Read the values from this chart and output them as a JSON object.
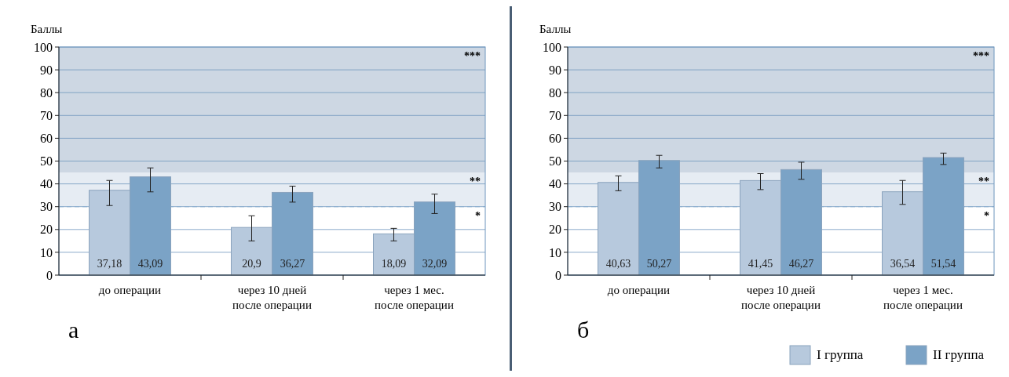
{
  "chart_data": [
    {
      "type": "bar",
      "ylabel": "Баллы",
      "categories": [
        "до операции",
        "через 10 дней\nпосле операции",
        "через 1 мес.\nпосле операции"
      ],
      "series": [
        {
          "color": "#b7c9dd",
          "values": [
            37.18,
            20.9,
            18.09
          ],
          "value_labels": [
            "37,18",
            "20,9",
            "18,09"
          ],
          "errors": [
            [
              30.5,
              41.5
            ],
            [
              15,
              26
            ],
            [
              15,
              20.5
            ]
          ]
        },
        {
          "color": "#7ba3c6",
          "values": [
            43.09,
            36.27,
            32.09
          ],
          "value_labels": [
            "43,09",
            "36,27",
            "32,09"
          ],
          "errors": [
            [
              36.5,
              47
            ],
            [
              32,
              39
            ],
            [
              27,
              35.5
            ]
          ]
        }
      ],
      "ylim": [
        0,
        100
      ],
      "yticks": [
        0,
        10,
        20,
        30,
        40,
        50,
        60,
        70,
        80,
        90,
        100
      ],
      "grid": "y",
      "bands": [
        {
          "axis": "y",
          "from": 45,
          "to": 100,
          "label": "***",
          "color": "#cdd7e3"
        },
        {
          "axis": "y",
          "from": 30,
          "to": 45,
          "label": "**",
          "color": "#e6ecf3"
        }
      ],
      "ref_lines": [
        {
          "axis": "y",
          "value": 30,
          "color": "#8fb0d0",
          "line_style": "dashed"
        }
      ],
      "annotations": [
        "*",
        "а"
      ],
      "legend": false
    },
    {
      "type": "bar",
      "ylabel": "Баллы",
      "categories": [
        "до операции",
        "через 10 дней\nпосле операции",
        "через 1 мес.\nпосле операции"
      ],
      "series": [
        {
          "name": "I группа",
          "color": "#b7c9dd",
          "values": [
            40.63,
            41.45,
            36.54
          ],
          "value_labels": [
            "40,63",
            "41,45",
            "36,54"
          ],
          "errors": [
            [
              37,
              43.5
            ],
            [
              37.5,
              44.5
            ],
            [
              31,
              41.5
            ]
          ]
        },
        {
          "name": "II группа",
          "color": "#7ba3c6",
          "values": [
            50.27,
            46.27,
            51.54
          ],
          "value_labels": [
            "50,27",
            "46,27",
            "51,54"
          ],
          "errors": [
            [
              47,
              52.5
            ],
            [
              42,
              49.5
            ],
            [
              48.5,
              53.5
            ]
          ]
        }
      ],
      "ylim": [
        0,
        100
      ],
      "yticks": [
        0,
        10,
        20,
        30,
        40,
        50,
        60,
        70,
        80,
        90,
        100
      ],
      "grid": "y",
      "bands": [
        {
          "axis": "y",
          "from": 45,
          "to": 100,
          "label": "***",
          "color": "#cdd7e3"
        },
        {
          "axis": "y",
          "from": 30,
          "to": 45,
          "label": "**",
          "color": "#e6ecf3"
        }
      ],
      "ref_lines": [
        {
          "axis": "y",
          "value": 30,
          "color": "#8fb0d0",
          "line_style": "dashed"
        }
      ],
      "annotations": [
        "*",
        "б"
      ],
      "legend": "bottom right"
    }
  ]
}
